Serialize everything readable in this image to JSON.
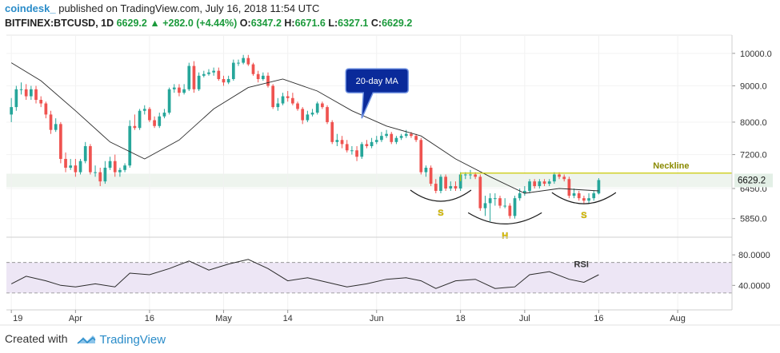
{
  "header": {
    "brand": "coindesk_",
    "published": "published on TradingView.com, July 16, 2018 11:54 UTC",
    "symbol": "BITFINEX:BTCUSD, 1D",
    "last": "6629.2",
    "change": "+282.0 (+4.44%)",
    "o_label": "O:",
    "o": "6347.2",
    "h_label": "H:",
    "h": "6671.6",
    "l_label": "L:",
    "l": "6327.1",
    "c_label": "C:",
    "c": "6629.2"
  },
  "footer": {
    "created_with": "Created with",
    "brand": "TradingView"
  },
  "colors": {
    "up": "#26a69a",
    "down": "#ef5350",
    "ma": "#2b2b2b",
    "neckline": "#c8c800",
    "label_yellow": "#e0d000",
    "callout": "#0a2a9a",
    "rsi_bg": "#efeaf5",
    "price_tag": "#e8f0ea"
  },
  "chart_data": [
    {
      "type": "candlestick",
      "title": "BITFINEX:BTCUSD, 1D",
      "x_tick_labels": [
        "19",
        "Apr",
        "16",
        "May",
        "14",
        "Jun",
        "18",
        "Jul",
        "16",
        "Aug"
      ],
      "x_tick_dates": [
        "2018-03-19",
        "2018-04-01",
        "2018-04-16",
        "2018-05-01",
        "2018-05-14",
        "2018-06-01",
        "2018-06-18",
        "2018-07-01",
        "2018-07-16",
        "2018-08-01"
      ],
      "y_tick_labels": [
        "10000.0",
        "9000.0",
        "8000.0",
        "7200.0",
        "6450.0",
        "5850.0"
      ],
      "y_tick_values": [
        10000,
        9000,
        8000,
        7200,
        6450,
        5850
      ],
      "ylim": [
        5550,
        10500
      ],
      "xlim": [
        "2018-03-18",
        "2018-08-12"
      ],
      "last_price_label": "6629.2",
      "series": [
        {
          "name": "BTCUSD",
          "dates": [
            "2018-03-19",
            "2018-03-20",
            "2018-03-21",
            "2018-03-22",
            "2018-03-23",
            "2018-03-24",
            "2018-03-25",
            "2018-03-26",
            "2018-03-27",
            "2018-03-28",
            "2018-03-29",
            "2018-03-30",
            "2018-03-31",
            "2018-04-01",
            "2018-04-02",
            "2018-04-03",
            "2018-04-04",
            "2018-04-05",
            "2018-04-06",
            "2018-04-07",
            "2018-04-08",
            "2018-04-09",
            "2018-04-10",
            "2018-04-11",
            "2018-04-12",
            "2018-04-13",
            "2018-04-14",
            "2018-04-15",
            "2018-04-16",
            "2018-04-17",
            "2018-04-18",
            "2018-04-19",
            "2018-04-20",
            "2018-04-21",
            "2018-04-22",
            "2018-04-23",
            "2018-04-24",
            "2018-04-25",
            "2018-04-26",
            "2018-04-27",
            "2018-04-28",
            "2018-04-29",
            "2018-04-30",
            "2018-05-01",
            "2018-05-02",
            "2018-05-03",
            "2018-05-04",
            "2018-05-05",
            "2018-05-06",
            "2018-05-07",
            "2018-05-08",
            "2018-05-09",
            "2018-05-10",
            "2018-05-11",
            "2018-05-12",
            "2018-05-13",
            "2018-05-14",
            "2018-05-15",
            "2018-05-16",
            "2018-05-17",
            "2018-05-18",
            "2018-05-19",
            "2018-05-20",
            "2018-05-21",
            "2018-05-22",
            "2018-05-23",
            "2018-05-24",
            "2018-05-25",
            "2018-05-26",
            "2018-05-27",
            "2018-05-28",
            "2018-05-29",
            "2018-05-30",
            "2018-05-31",
            "2018-06-01",
            "2018-06-02",
            "2018-06-03",
            "2018-06-04",
            "2018-06-05",
            "2018-06-06",
            "2018-06-07",
            "2018-06-08",
            "2018-06-09",
            "2018-06-10",
            "2018-06-11",
            "2018-06-12",
            "2018-06-13",
            "2018-06-14",
            "2018-06-15",
            "2018-06-16",
            "2018-06-17",
            "2018-06-18",
            "2018-06-19",
            "2018-06-20",
            "2018-06-21",
            "2018-06-22",
            "2018-06-23",
            "2018-06-24",
            "2018-06-25",
            "2018-06-26",
            "2018-06-27",
            "2018-06-28",
            "2018-06-29",
            "2018-06-30",
            "2018-07-01",
            "2018-07-02",
            "2018-07-03",
            "2018-07-04",
            "2018-07-05",
            "2018-07-06",
            "2018-07-07",
            "2018-07-08",
            "2018-07-09",
            "2018-07-10",
            "2018-07-11",
            "2018-07-12",
            "2018-07-13",
            "2018-07-14",
            "2018-07-15",
            "2018-07-16"
          ],
          "close": [
            8400,
            8900,
            8900,
            8700,
            8900,
            8600,
            8500,
            8200,
            7800,
            7950,
            7100,
            6900,
            6950,
            6800,
            7050,
            7400,
            6800,
            6800,
            6600,
            6900,
            7050,
            6800,
            6850,
            6950,
            7900,
            7850,
            8300,
            8350,
            8050,
            7900,
            8150,
            8250,
            8900,
            8950,
            8800,
            8900,
            9600,
            8900,
            9300,
            9350,
            9400,
            9450,
            9200,
            9100,
            9200,
            9700,
            9700,
            9850,
            9650,
            9350,
            9200,
            9300,
            9000,
            8400,
            8500,
            8700,
            8650,
            8500,
            8350,
            8050,
            8200,
            8250,
            8500,
            8400,
            8000,
            7500,
            7550,
            7450,
            7300,
            7300,
            7150,
            7450,
            7400,
            7500,
            7550,
            7650,
            7700,
            7500,
            7600,
            7650,
            7700,
            7650,
            7550,
            6800,
            6900,
            6550,
            6400,
            6700,
            6450,
            6500,
            6450,
            6750,
            6750,
            6750,
            6700,
            6050,
            6150,
            6250,
            6250,
            6100,
            6100,
            5900,
            6250,
            6350,
            6400,
            6600,
            6500,
            6600,
            6550,
            6600,
            6750,
            6700,
            6650,
            6300,
            6350,
            6250,
            6200,
            6250,
            6350,
            6629.2
          ],
          "open": [
            8200,
            8400,
            8900,
            8900,
            8700,
            8900,
            8600,
            8500,
            8200,
            7800,
            7950,
            7100,
            6900,
            6950,
            6800,
            7050,
            7400,
            6800,
            6800,
            6600,
            6900,
            7050,
            6800,
            6850,
            6950,
            7900,
            7850,
            8300,
            8350,
            8050,
            7900,
            8150,
            8250,
            8900,
            8950,
            8800,
            8900,
            9600,
            8900,
            9300,
            9350,
            9400,
            9450,
            9200,
            9100,
            9200,
            9700,
            9700,
            9850,
            9650,
            9350,
            9200,
            9300,
            9000,
            8400,
            8500,
            8700,
            8650,
            8500,
            8350,
            8050,
            8200,
            8250,
            8500,
            8400,
            8000,
            7500,
            7550,
            7450,
            7300,
            7300,
            7150,
            7450,
            7400,
            7500,
            7550,
            7650,
            7700,
            7500,
            7600,
            7650,
            7700,
            7650,
            7550,
            6800,
            6900,
            6550,
            6400,
            6700,
            6450,
            6500,
            6450,
            6750,
            6750,
            6750,
            6700,
            6050,
            6150,
            6250,
            6250,
            6100,
            6100,
            5900,
            6250,
            6350,
            6400,
            6600,
            6500,
            6600,
            6550,
            6600,
            6750,
            6700,
            6650,
            6300,
            6350,
            6250,
            6200,
            6250,
            6347.2
          ],
          "high": [
            8650,
            9000,
            9100,
            9050,
            9000,
            9000,
            8700,
            8550,
            8300,
            8100,
            8000,
            7250,
            7100,
            7100,
            7100,
            7500,
            7450,
            6950,
            6900,
            7050,
            7150,
            7200,
            6900,
            7000,
            8050,
            8200,
            8350,
            8450,
            8400,
            8150,
            8250,
            8350,
            8950,
            9050,
            9050,
            9050,
            9700,
            9750,
            9400,
            9450,
            9500,
            9550,
            9550,
            9300,
            9300,
            9800,
            9800,
            9950,
            9950,
            9700,
            9450,
            9400,
            9400,
            9050,
            8650,
            8800,
            8850,
            8800,
            8550,
            8400,
            8300,
            8350,
            8550,
            8550,
            8450,
            8050,
            7700,
            7650,
            7550,
            7400,
            7400,
            7500,
            7550,
            7600,
            7650,
            7750,
            7800,
            7750,
            7650,
            7700,
            7800,
            7750,
            7700,
            7600,
            6950,
            6950,
            6650,
            6750,
            6750,
            6600,
            6600,
            6800,
            6800,
            6850,
            6800,
            6750,
            6300,
            6350,
            6350,
            6300,
            6250,
            6150,
            6300,
            6450,
            6500,
            6650,
            6650,
            6650,
            6650,
            6650,
            6800,
            6800,
            6750,
            6700,
            6450,
            6400,
            6300,
            6350,
            6400,
            6671.6
          ],
          "low": [
            8000,
            8300,
            8750,
            8600,
            8600,
            8500,
            8400,
            8100,
            7700,
            7750,
            7000,
            6800,
            6850,
            6700,
            6750,
            7000,
            6750,
            6700,
            6500,
            6550,
            6850,
            6700,
            6700,
            6800,
            6900,
            7800,
            7800,
            8200,
            8000,
            7850,
            7850,
            8100,
            8200,
            8800,
            8700,
            8750,
            8850,
            8800,
            8850,
            9250,
            9300,
            9300,
            9150,
            9000,
            9050,
            9150,
            9600,
            9650,
            9600,
            9300,
            9100,
            9150,
            8950,
            8350,
            8300,
            8450,
            8550,
            8450,
            8300,
            7950,
            8000,
            8150,
            8200,
            8350,
            7950,
            7450,
            7400,
            7350,
            7250,
            7200,
            7050,
            7100,
            7350,
            7350,
            7450,
            7500,
            7600,
            7450,
            7450,
            7550,
            7600,
            7600,
            7500,
            6750,
            6700,
            6500,
            6350,
            6350,
            6400,
            6400,
            6400,
            6400,
            6650,
            6650,
            6650,
            6000,
            5900,
            5800,
            6100,
            6050,
            6050,
            5850,
            5850,
            6200,
            6300,
            6350,
            6450,
            6450,
            6500,
            6500,
            6550,
            6650,
            6600,
            6250,
            6250,
            6200,
            6150,
            6150,
            6200,
            6327.1
          ]
        },
        {
          "name": "20-day MA",
          "dates": [
            "2018-03-19",
            "2018-03-25",
            "2018-04-01",
            "2018-04-08",
            "2018-04-15",
            "2018-04-22",
            "2018-04-29",
            "2018-05-06",
            "2018-05-13",
            "2018-05-20",
            "2018-05-27",
            "2018-06-03",
            "2018-06-10",
            "2018-06-17",
            "2018-06-24",
            "2018-07-01",
            "2018-07-08",
            "2018-07-16"
          ],
          "values": [
            9700,
            9150,
            8300,
            7500,
            7100,
            7550,
            8350,
            8950,
            9200,
            8850,
            8300,
            7900,
            7650,
            7100,
            6700,
            6350,
            6450,
            6400
          ]
        }
      ],
      "annotations": [
        {
          "text": "20-day MA",
          "type": "callout",
          "date": "2018-05-29",
          "value": 8100
        },
        {
          "text": "Neckline",
          "type": "level",
          "value": 6780,
          "from": "2018-06-18",
          "to": "2018-08-12"
        },
        {
          "text": "S",
          "date": "2018-06-14",
          "value": 6350
        },
        {
          "text": "H",
          "date": "2018-06-27",
          "value": 5900
        },
        {
          "text": "S",
          "date": "2018-07-13",
          "value": 6300
        }
      ]
    },
    {
      "type": "line",
      "legend": "RSI",
      "y_tick_labels": [
        "80.0000",
        "40.0000"
      ],
      "y_tick_values": [
        80,
        40
      ],
      "ylim": [
        10,
        100
      ],
      "bands": [
        70,
        30
      ],
      "dates": [
        "2018-03-19",
        "2018-03-22",
        "2018-03-26",
        "2018-03-29",
        "2018-04-01",
        "2018-04-05",
        "2018-04-09",
        "2018-04-12",
        "2018-04-16",
        "2018-04-20",
        "2018-04-24",
        "2018-04-28",
        "2018-05-02",
        "2018-05-06",
        "2018-05-10",
        "2018-05-14",
        "2018-05-18",
        "2018-05-22",
        "2018-05-26",
        "2018-05-30",
        "2018-06-03",
        "2018-06-07",
        "2018-06-10",
        "2018-06-13",
        "2018-06-17",
        "2018-06-21",
        "2018-06-25",
        "2018-06-29",
        "2018-07-02",
        "2018-07-06",
        "2018-07-10",
        "2018-07-13",
        "2018-07-16"
      ],
      "values": [
        42,
        52,
        46,
        40,
        38,
        42,
        38,
        56,
        54,
        62,
        72,
        60,
        68,
        74,
        62,
        46,
        50,
        44,
        38,
        42,
        48,
        50,
        46,
        36,
        46,
        48,
        36,
        38,
        54,
        58,
        48,
        44,
        54
      ]
    }
  ]
}
